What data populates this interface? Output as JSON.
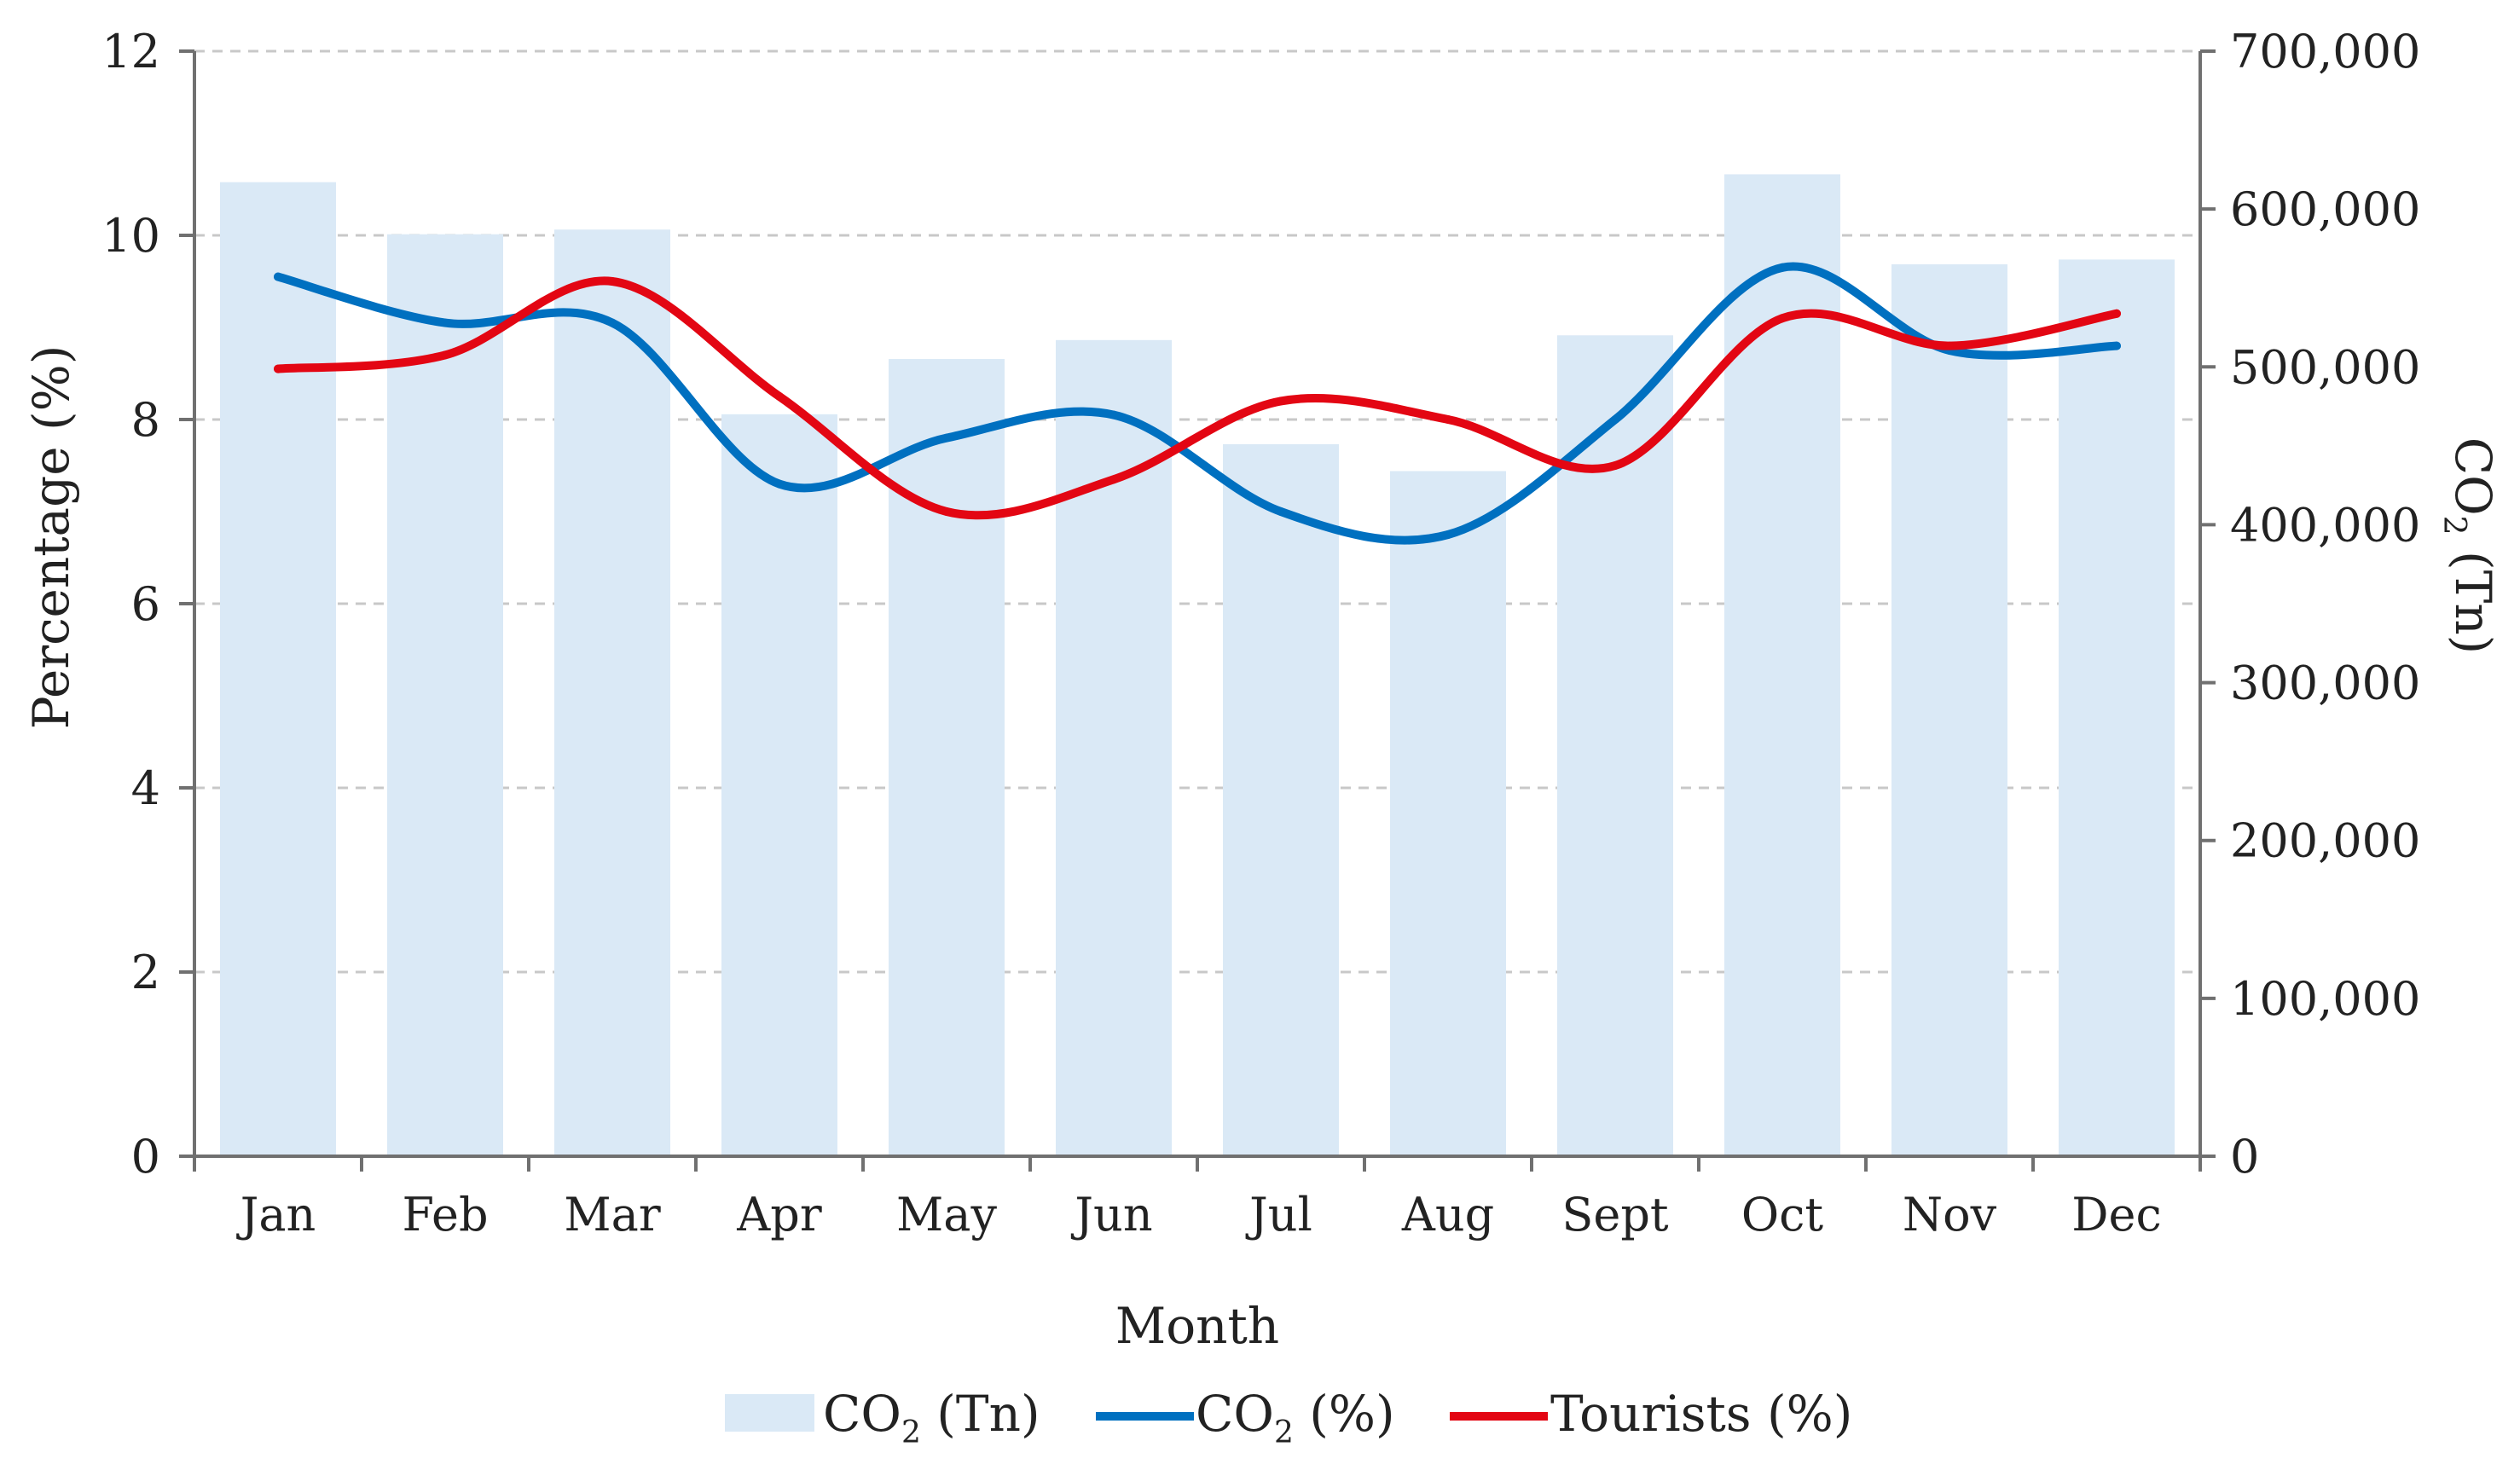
{
  "chart_data": {
    "type": "bar+line",
    "categories": [
      "Jan",
      "Feb",
      "Mar",
      "Apr",
      "May",
      "Jun",
      "Jul",
      "Aug",
      "Sept",
      "Oct",
      "Nov",
      "Dec"
    ],
    "xlabel": "Month",
    "ylabel_left": "Percentage (%)",
    "ylabel_right": {
      "main": "CO",
      "sub": "2",
      "rest": " (Tn)"
    },
    "ylim_left": [
      0,
      12
    ],
    "yticks_left": [
      "0",
      "2",
      "4",
      "6",
      "8",
      "10",
      "12"
    ],
    "ylim_right": [
      0,
      700000
    ],
    "yticks_right": [
      "0",
      "100,000",
      "200,000",
      "300,000",
      "400,000",
      "500,000",
      "600,000",
      "700,000"
    ],
    "grid": true,
    "legend_position": "bottom",
    "series": [
      {
        "name": "CO2 (Tn)",
        "legend": {
          "main": "CO",
          "sub": "2",
          "rest": "  (Tn)"
        },
        "kind": "bar",
        "axis": "right",
        "color": "#dae9f6",
        "values": [
          617000,
          584000,
          587000,
          470000,
          505000,
          517000,
          451000,
          434000,
          520000,
          622000,
          565000,
          568000
        ]
      },
      {
        "name": "CO2 (%)",
        "legend": {
          "main": "CO",
          "sub": "2",
          "rest": "  (%)"
        },
        "kind": "line",
        "axis": "left",
        "color": "#0070c0",
        "values": [
          9.55,
          9.05,
          9.05,
          7.3,
          7.8,
          8.05,
          7.0,
          6.75,
          8.0,
          9.65,
          8.75,
          8.8
        ]
      },
      {
        "name": "Tourists (%)",
        "legend": {
          "main": "Tourists",
          "sub": "",
          "rest": " (%)"
        },
        "kind": "line",
        "axis": "left",
        "color": "#e30613",
        "values": [
          8.55,
          8.7,
          9.5,
          8.25,
          7.0,
          7.35,
          8.2,
          8.0,
          7.5,
          9.1,
          8.8,
          9.15
        ]
      }
    ]
  }
}
